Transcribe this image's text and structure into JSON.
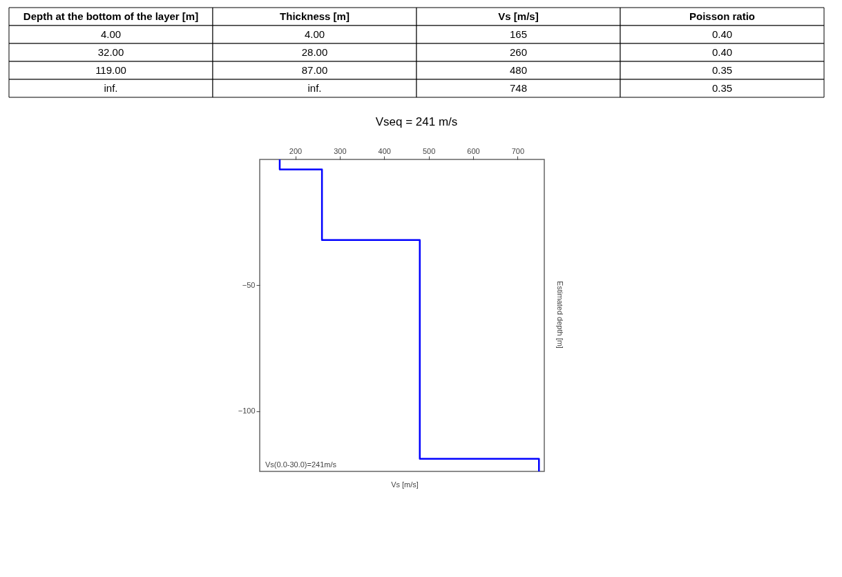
{
  "chart_data": [
    {
      "type": "other",
      "categories": [
        "Depth at the bottom of the layer [m]",
        "Thickness [m]",
        "Vs [m/s]",
        "Poisson ratio"
      ],
      "annotations": [
        "4.00",
        "4.00",
        "165",
        "0.40",
        "32.00",
        "28.00",
        "260",
        "0.40",
        "119.00",
        "87.00",
        "480",
        "0.35",
        "inf.",
        "inf.",
        "748",
        "0.35"
      ]
    },
    {
      "type": "line",
      "title": "Vseq = 241 m/s",
      "xlabel": "Vs [m/s]",
      "ylabel": "Estimated depth [m]",
      "series": [
        {
          "color": "#0000ff",
          "x": [
            165,
            165,
            260,
            260,
            480,
            480,
            748,
            748
          ],
          "values": [
            0,
            -4,
            -4,
            -32,
            -32,
            -119,
            -119,
            -124
          ]
        }
      ],
      "xlim": [
        120,
        760
      ],
      "xticks": [
        200,
        300,
        400,
        500,
        600,
        700
      ],
      "ylim": [
        -124,
        0
      ],
      "yticks": [
        -50,
        -100
      ],
      "annotations": [
        "Vs(0.0-30.0)=241m/s"
      ],
      "grid": false,
      "marker": "none",
      "line_style": "solid"
    }
  ]
}
